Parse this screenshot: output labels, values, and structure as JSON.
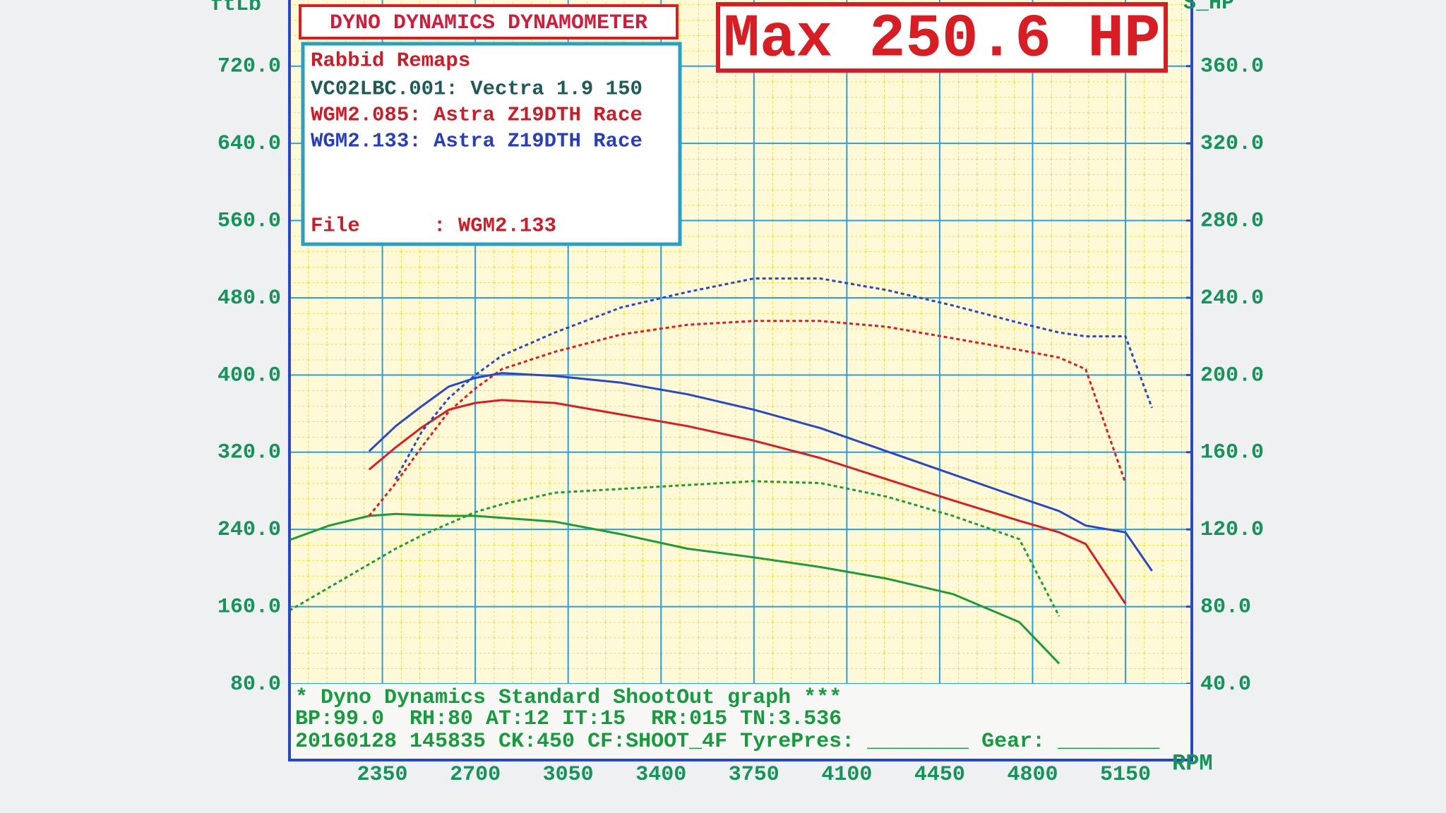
{
  "chart_data": {
    "type": "line",
    "title": "DYNO DYNAMICS DYNAMOMETER",
    "headline": "Max 250.6 HP",
    "y_label": "ftLb",
    "y2_label": "S_HP",
    "x_label": "RPM",
    "legend": {
      "heading": "Rabbid Remaps",
      "entries": [
        "VC02LBC.001: Vectra 1.9 150",
        "WGM2.085: Astra Z19DTH Race",
        "WGM2.133: Astra Z19DTH Race"
      ],
      "file": "File      : WGM2.133"
    },
    "footer": [
      "* Dyno Dynamics Standard ShootOut graph ***",
      "BP:99.0  RH:80 AT:12 IT:15  RR:015 TN:3.536",
      "20160128 145835 CK:450 CF:SHOOT_4F TyrePres: ________ Gear: ________"
    ],
    "x": [
      2000,
      2150,
      2300,
      2400,
      2500,
      2600,
      2700,
      2800,
      3000,
      3250,
      3500,
      3750,
      4000,
      4250,
      4500,
      4750,
      4900,
      5000,
      5150,
      5250
    ],
    "xlim": [
      2000,
      5400
    ],
    "xticks": [
      2350,
      2700,
      3050,
      3400,
      3750,
      4100,
      4450,
      4800,
      5150
    ],
    "ylim": [
      80,
      760
    ],
    "yticks": [
      {
        "value": 80,
        "label": "80.0"
      },
      {
        "value": 160,
        "label": "160.0"
      },
      {
        "value": 240,
        "label": "240.0"
      },
      {
        "value": 320,
        "label": "320.0"
      },
      {
        "value": 400,
        "label": "400.0"
      },
      {
        "value": 480,
        "label": "480.0"
      },
      {
        "value": 560,
        "label": "560.0"
      },
      {
        "value": 640,
        "label": "640.0"
      },
      {
        "value": 720,
        "label": "720.0"
      }
    ],
    "y2lim": [
      40,
      380
    ],
    "y2ticks": [
      {
        "value": 40,
        "label": "40.0"
      },
      {
        "value": 80,
        "label": "80.0"
      },
      {
        "value": 120,
        "label": "120.0"
      },
      {
        "value": 160,
        "label": "160.0"
      },
      {
        "value": 200,
        "label": "200.0"
      },
      {
        "value": 240,
        "label": "240.0"
      },
      {
        "value": 280,
        "label": "280.0"
      },
      {
        "value": 320,
        "label": "320.0"
      },
      {
        "value": 360,
        "label": "360.0"
      }
    ],
    "grid": true,
    "series": [
      {
        "color": "#1f9a3a",
        "dashed": false,
        "values": [
          229,
          244,
          254,
          256,
          255,
          254,
          254,
          252,
          248,
          235,
          220,
          211,
          201,
          189,
          173,
          144,
          101,
          null,
          null,
          null
        ]
      },
      {
        "color": "#1f9a3a",
        "dashed": true,
        "axis": "y2",
        "values": [
          78,
          90,
          102,
          110,
          117,
          123,
          129,
          133,
          139,
          141,
          143,
          145,
          144,
          137,
          127,
          115,
          75,
          null,
          null,
          null
        ]
      },
      {
        "color": "#d61e24",
        "dashed": false,
        "values": [
          null,
          null,
          302,
          325,
          346,
          364,
          371,
          374,
          371,
          359,
          347,
          332,
          314,
          292,
          270,
          249,
          237,
          225,
          163,
          null
        ]
      },
      {
        "color": "#d61e24",
        "dashed": true,
        "axis": "y2",
        "values": [
          null,
          null,
          127,
          144,
          163,
          181,
          193,
          203,
          212,
          221,
          226,
          228,
          228,
          225,
          219,
          213,
          209,
          203,
          144,
          null
        ]
      },
      {
        "color": "#2a47c4",
        "dashed": false,
        "values": [
          null,
          null,
          321,
          347,
          368,
          388,
          397,
          402,
          399,
          392,
          380,
          364,
          345,
          321,
          297,
          273,
          259,
          244,
          237,
          197
        ]
      },
      {
        "color": "#2a47c4",
        "dashed": true,
        "axis": "y2",
        "values": [
          null,
          null,
          null,
          146,
          171,
          188,
          200,
          210,
          222,
          235,
          243,
          250,
          250,
          244,
          236,
          227,
          222,
          220,
          220,
          183
        ]
      }
    ]
  }
}
